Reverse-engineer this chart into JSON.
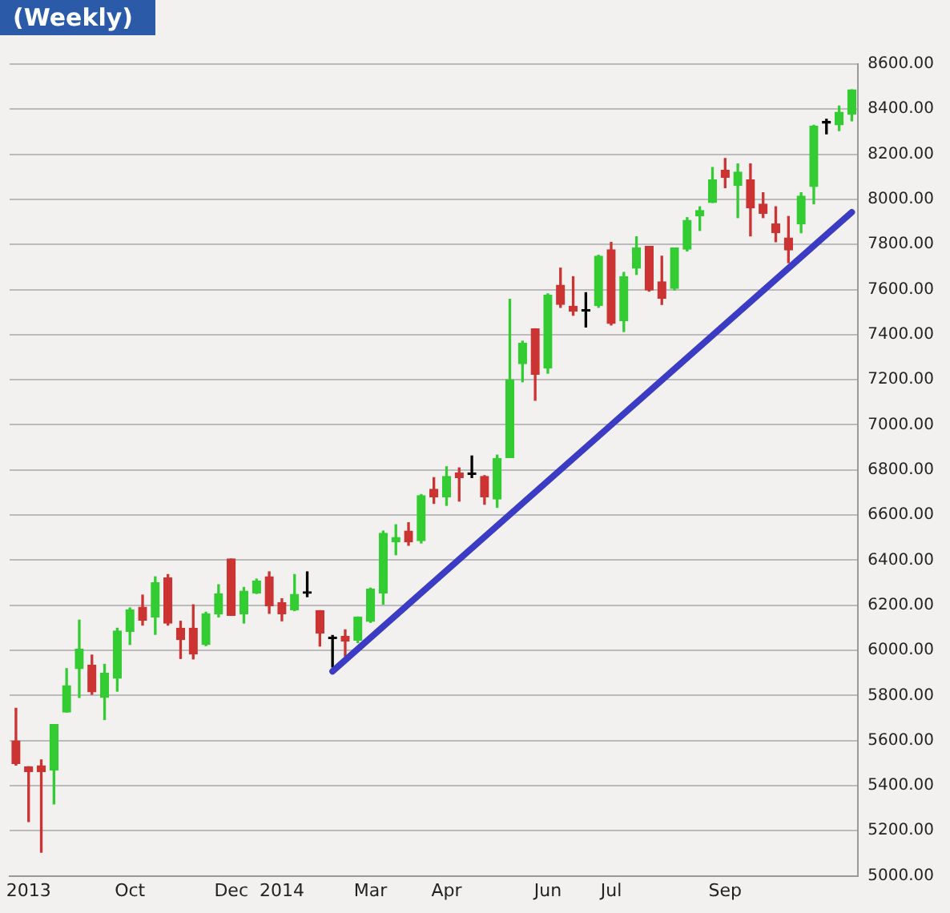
{
  "chart_data": {
    "type": "candlestick",
    "title": "(Weekly)",
    "categories": [
      null,
      "2013",
      null,
      null,
      null,
      null,
      null,
      null,
      null,
      "Oct",
      null,
      null,
      null,
      null,
      null,
      null,
      null,
      "Dec",
      null,
      null,
      null,
      "2014",
      null,
      null,
      null,
      null,
      null,
      null,
      "Mar",
      null,
      null,
      null,
      null,
      null,
      "Apr",
      null,
      null,
      null,
      null,
      null,
      null,
      null,
      "Jun",
      null,
      null,
      null,
      null,
      "Jul",
      null,
      null,
      null,
      null,
      null,
      null,
      null,
      null,
      "Sep",
      null,
      null,
      null,
      null,
      null,
      null,
      null,
      null,
      null,
      null
    ],
    "ohlc": [
      [
        5598,
        5743,
        5491,
        5498
      ],
      [
        5484,
        5484,
        5241,
        5462
      ],
      [
        5488,
        5514,
        5105,
        5462
      ],
      [
        5469,
        5671,
        5319,
        5671
      ],
      [
        5726,
        5919,
        5726,
        5843
      ],
      [
        5919,
        6134,
        5791,
        6005
      ],
      [
        5934,
        5979,
        5805,
        5816
      ],
      [
        5791,
        5938,
        5693,
        5898
      ],
      [
        5876,
        6098,
        5819,
        6086
      ],
      [
        6084,
        6188,
        6026,
        6179
      ],
      [
        6191,
        6245,
        6112,
        6134
      ],
      [
        6148,
        6326,
        6071,
        6300
      ],
      [
        6321,
        6336,
        6112,
        6121
      ],
      [
        6098,
        6129,
        5964,
        6048
      ],
      [
        6098,
        6202,
        5962,
        5984
      ],
      [
        6026,
        6169,
        6021,
        6162
      ],
      [
        6162,
        6291,
        6148,
        6250
      ],
      [
        6405,
        6405,
        6155,
        6155
      ],
      [
        6162,
        6279,
        6121,
        6262
      ],
      [
        6255,
        6316,
        6252,
        6307
      ],
      [
        6326,
        6348,
        6164,
        6198
      ],
      [
        6212,
        6229,
        6131,
        6162
      ],
      [
        6179,
        6336,
        6176,
        6248
      ],
      [
        6253,
        6348,
        6238,
        6253
      ],
      [
        6176,
        6176,
        6019,
        6076
      ],
      [
        6052,
        6066,
        5926,
        6052
      ],
      [
        6062,
        6091,
        5974,
        6041
      ],
      [
        6045,
        6148,
        6034,
        6148
      ],
      [
        6129,
        6276,
        6124,
        6271
      ],
      [
        6255,
        6529,
        6205,
        6519
      ],
      [
        6481,
        6557,
        6424,
        6500
      ],
      [
        6529,
        6566,
        6466,
        6481
      ],
      [
        6486,
        6691,
        6476,
        6686
      ],
      [
        6714,
        6766,
        6652,
        6681
      ],
      [
        6681,
        6814,
        6643,
        6771
      ],
      [
        6786,
        6809,
        6662,
        6766
      ],
      [
        6780,
        6862,
        6766,
        6780
      ],
      [
        6771,
        6775,
        6648,
        6681
      ],
      [
        6671,
        6866,
        6634,
        6850
      ],
      [
        6855,
        7557,
        6855,
        7200
      ],
      [
        7271,
        7371,
        7191,
        7362
      ],
      [
        7426,
        7426,
        7109,
        7224
      ],
      [
        7252,
        7581,
        7229,
        7576
      ],
      [
        7619,
        7695,
        7521,
        7534
      ],
      [
        7526,
        7657,
        7486,
        7505
      ],
      [
        7504,
        7586,
        7434,
        7504
      ],
      [
        7529,
        7752,
        7521,
        7748
      ],
      [
        7776,
        7809,
        7443,
        7450
      ],
      [
        7462,
        7676,
        7414,
        7657
      ],
      [
        7695,
        7834,
        7667,
        7784
      ],
      [
        7791,
        7791,
        7593,
        7598
      ],
      [
        7634,
        7748,
        7534,
        7562
      ],
      [
        7605,
        7784,
        7598,
        7784
      ],
      [
        7779,
        7919,
        7771,
        7907
      ],
      [
        7927,
        7967,
        7862,
        7950
      ],
      [
        7986,
        8141,
        7986,
        8086
      ],
      [
        8129,
        8181,
        8052,
        8098
      ],
      [
        8062,
        8157,
        7919,
        8121
      ],
      [
        8086,
        8157,
        7838,
        7962
      ],
      [
        7979,
        8029,
        7919,
        7938
      ],
      [
        7891,
        7967,
        7812,
        7852
      ],
      [
        7829,
        7924,
        7719,
        7776
      ],
      [
        7891,
        8029,
        7852,
        8014
      ],
      [
        8057,
        8329,
        7981,
        8324
      ],
      [
        8338,
        8355,
        8291,
        8338
      ],
      [
        8331,
        8414,
        8305,
        8386
      ],
      [
        8379,
        8486,
        8348,
        8486
      ]
    ],
    "colors": [
      "#cc3333",
      "#cc3333",
      "#cc3333",
      "#33cc33",
      "#33cc33",
      "#33cc33",
      "#cc3333",
      "#33cc33",
      "#33cc33",
      "#33cc33",
      "#cc3333",
      "#33cc33",
      "#cc3333",
      "#cc3333",
      "#cc3333",
      "#33cc33",
      "#33cc33",
      "#cc3333",
      "#33cc33",
      "#33cc33",
      "#cc3333",
      "#cc3333",
      "#33cc33",
      "#000000",
      "#cc3333",
      "#000000",
      "#cc3333",
      "#33cc33",
      "#33cc33",
      "#33cc33",
      "#33cc33",
      "#cc3333",
      "#33cc33",
      "#cc3333",
      "#33cc33",
      "#cc3333",
      "#000000",
      "#cc3333",
      "#33cc33",
      "#33cc33",
      "#33cc33",
      "#cc3333",
      "#33cc33",
      "#cc3333",
      "#cc3333",
      "#000000",
      "#33cc33",
      "#cc3333",
      "#33cc33",
      "#33cc33",
      "#cc3333",
      "#cc3333",
      "#33cc33",
      "#33cc33",
      "#33cc33",
      "#33cc33",
      "#cc3333",
      "#33cc33",
      "#cc3333",
      "#cc3333",
      "#cc3333",
      "#cc3333",
      "#33cc33",
      "#33cc33",
      "#000000",
      "#33cc33",
      "#33cc33"
    ],
    "series": [
      {
        "type": "line",
        "color": "#3b3bc4",
        "values": [
          null,
          null,
          null,
          null,
          null,
          null,
          null,
          null,
          null,
          null,
          null,
          null,
          null,
          null,
          null,
          null,
          null,
          null,
          null,
          null,
          null,
          null,
          null,
          null,
          null,
          5907,
          null,
          null,
          null,
          null,
          null,
          null,
          null,
          null,
          null,
          null,
          null,
          null,
          null,
          null,
          null,
          null,
          null,
          null,
          null,
          null,
          null,
          null,
          null,
          null,
          null,
          null,
          null,
          null,
          null,
          null,
          null,
          null,
          null,
          null,
          null,
          null,
          null,
          null,
          null,
          null,
          7943
        ]
      }
    ],
    "ylim": [
      5000,
      8600
    ],
    "yticks": [
      {
        "value": 5000,
        "label": "5000.00"
      },
      {
        "value": 5200,
        "label": "5200.00"
      },
      {
        "value": 5400,
        "label": "5400.00"
      },
      {
        "value": 5600,
        "label": "5600.00"
      },
      {
        "value": 5800,
        "label": "5800.00"
      },
      {
        "value": 6000,
        "label": "6000.00"
      },
      {
        "value": 6200,
        "label": "6200.00"
      },
      {
        "value": 6400,
        "label": "6400.00"
      },
      {
        "value": 6600,
        "label": "6600.00"
      },
      {
        "value": 6800,
        "label": "6800.00"
      },
      {
        "value": 7000,
        "label": "7000.00"
      },
      {
        "value": 7200,
        "label": "7200.00"
      },
      {
        "value": 7400,
        "label": "7400.00"
      },
      {
        "value": 7600,
        "label": "7600.00"
      },
      {
        "value": 7800,
        "label": "7800.00"
      },
      {
        "value": 8000,
        "label": "8000.00"
      },
      {
        "value": 8200,
        "label": "8200.00"
      },
      {
        "value": 8400,
        "label": "8400.00"
      },
      {
        "value": 8600,
        "label": "8600.00"
      }
    ],
    "grid": "y"
  }
}
